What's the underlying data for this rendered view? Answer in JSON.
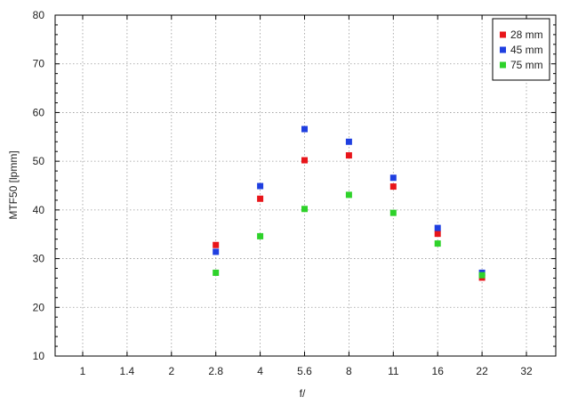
{
  "chart_data": {
    "type": "scatter",
    "xlabel": "f/",
    "ylabel": "MTF50 [lpmm]",
    "categories": [
      "1",
      "1.4",
      "2",
      "2.8",
      "4",
      "5.6",
      "8",
      "11",
      "16",
      "22",
      "32"
    ],
    "ylim": [
      10,
      80
    ],
    "yticks": [
      10,
      20,
      30,
      40,
      50,
      60,
      70,
      80
    ],
    "grid": true,
    "legend_position": "top-right",
    "series": [
      {
        "name": "28 mm",
        "color": "#e8151a",
        "points": [
          [
            "2.8",
            32.8
          ],
          [
            "4",
            42.3
          ],
          [
            "5.6",
            50.2
          ],
          [
            "8",
            51.2
          ],
          [
            "11",
            44.8
          ],
          [
            "16",
            35.1
          ],
          [
            "22",
            26.1
          ]
        ]
      },
      {
        "name": "45 mm",
        "color": "#1f3fe0",
        "points": [
          [
            "2.8",
            31.4
          ],
          [
            "4",
            44.9
          ],
          [
            "5.6",
            56.6
          ],
          [
            "8",
            54.0
          ],
          [
            "11",
            46.6
          ],
          [
            "16",
            36.3
          ],
          [
            "22",
            27.1
          ]
        ]
      },
      {
        "name": "75 mm",
        "color": "#2ed22a",
        "points": [
          [
            "2.8",
            27.1
          ],
          [
            "4",
            34.6
          ],
          [
            "5.6",
            40.2
          ],
          [
            "8",
            43.1
          ],
          [
            "11",
            39.4
          ],
          [
            "16",
            33.1
          ],
          [
            "22",
            26.6
          ]
        ]
      }
    ]
  }
}
